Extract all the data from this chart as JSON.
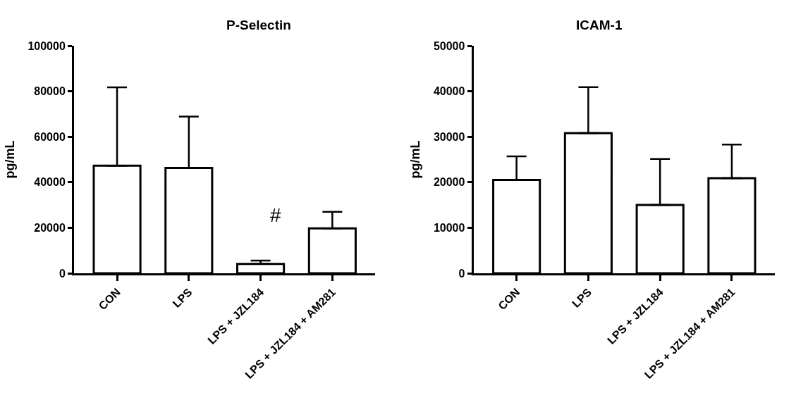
{
  "chart_data": [
    {
      "type": "bar",
      "title": "P-Selectin",
      "ylabel": "pg/mL",
      "categories": [
        "CON",
        "LPS",
        "LPS + JZL184",
        "LPS + JZL184 + AM281"
      ],
      "values": [
        47300,
        46300,
        4100,
        19700
      ],
      "errors": [
        [
          47300,
          81700
        ],
        [
          46300,
          68900
        ],
        [
          4100,
          5600
        ],
        [
          19700,
          27000
        ]
      ],
      "color": "#ffffff",
      "ylim": [
        0,
        100000
      ],
      "yticks": [
        0,
        20000,
        40000,
        60000,
        80000,
        100000
      ],
      "annotations": [
        "#"
      ]
    },
    {
      "type": "bar",
      "title": "ICAM-1",
      "ylabel": "pg/mL",
      "categories": [
        "CON",
        "LPS",
        "LPS + JZL184",
        "LPS + JZL184 + AM281"
      ],
      "values": [
        20500,
        30800,
        15000,
        20900
      ],
      "errors": [
        [
          20500,
          25700
        ],
        [
          30800,
          40900
        ],
        [
          15000,
          25100
        ],
        [
          20900,
          28300
        ]
      ],
      "color": "#ffffff",
      "ylim": [
        0,
        50000
      ],
      "yticks": [
        0,
        10000,
        20000,
        30000,
        40000,
        50000
      ]
    }
  ]
}
